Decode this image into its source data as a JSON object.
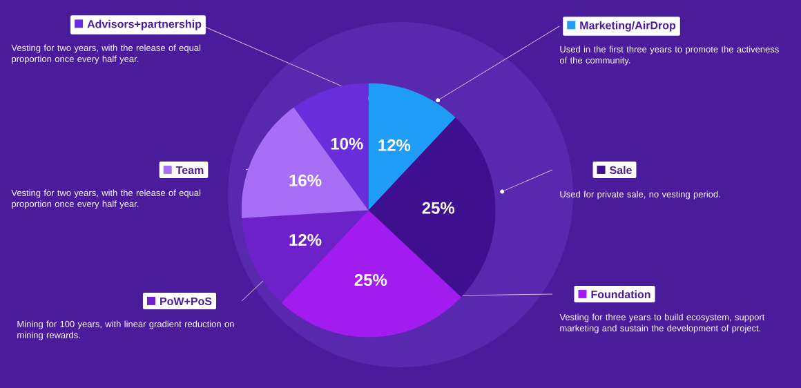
{
  "chart_data": {
    "type": "pie",
    "categories": [
      "Marketing/AirDrop",
      "Sale",
      "Foundation",
      "PoW+PoS",
      "Team",
      "Advisors+partnership"
    ],
    "values": [
      12,
      25,
      25,
      12,
      16,
      10
    ],
    "colors": [
      "#1f9cf6",
      "#3e0f8f",
      "#a21cf0",
      "#6d22c9",
      "#a86ef6",
      "#6a2ddb"
    ],
    "value_labels": [
      "12%",
      "25%",
      "25%",
      "12%",
      "16%",
      "10%"
    ],
    "annotations": [
      "Used in the first three years to promote the activeness of the community.",
      "Used for private sale, no vesting period.",
      "Vesting for three years to build ecosystem, support marketing and sustain the development of project.",
      "Mining for 100 years, with linear gradient reduction on mining rewards.",
      "Vesting for two years, with the release of equal proportion once every half year.",
      "Vesting for two years, with the release of equal proportion once every half year."
    ],
    "legend": "top"
  }
}
